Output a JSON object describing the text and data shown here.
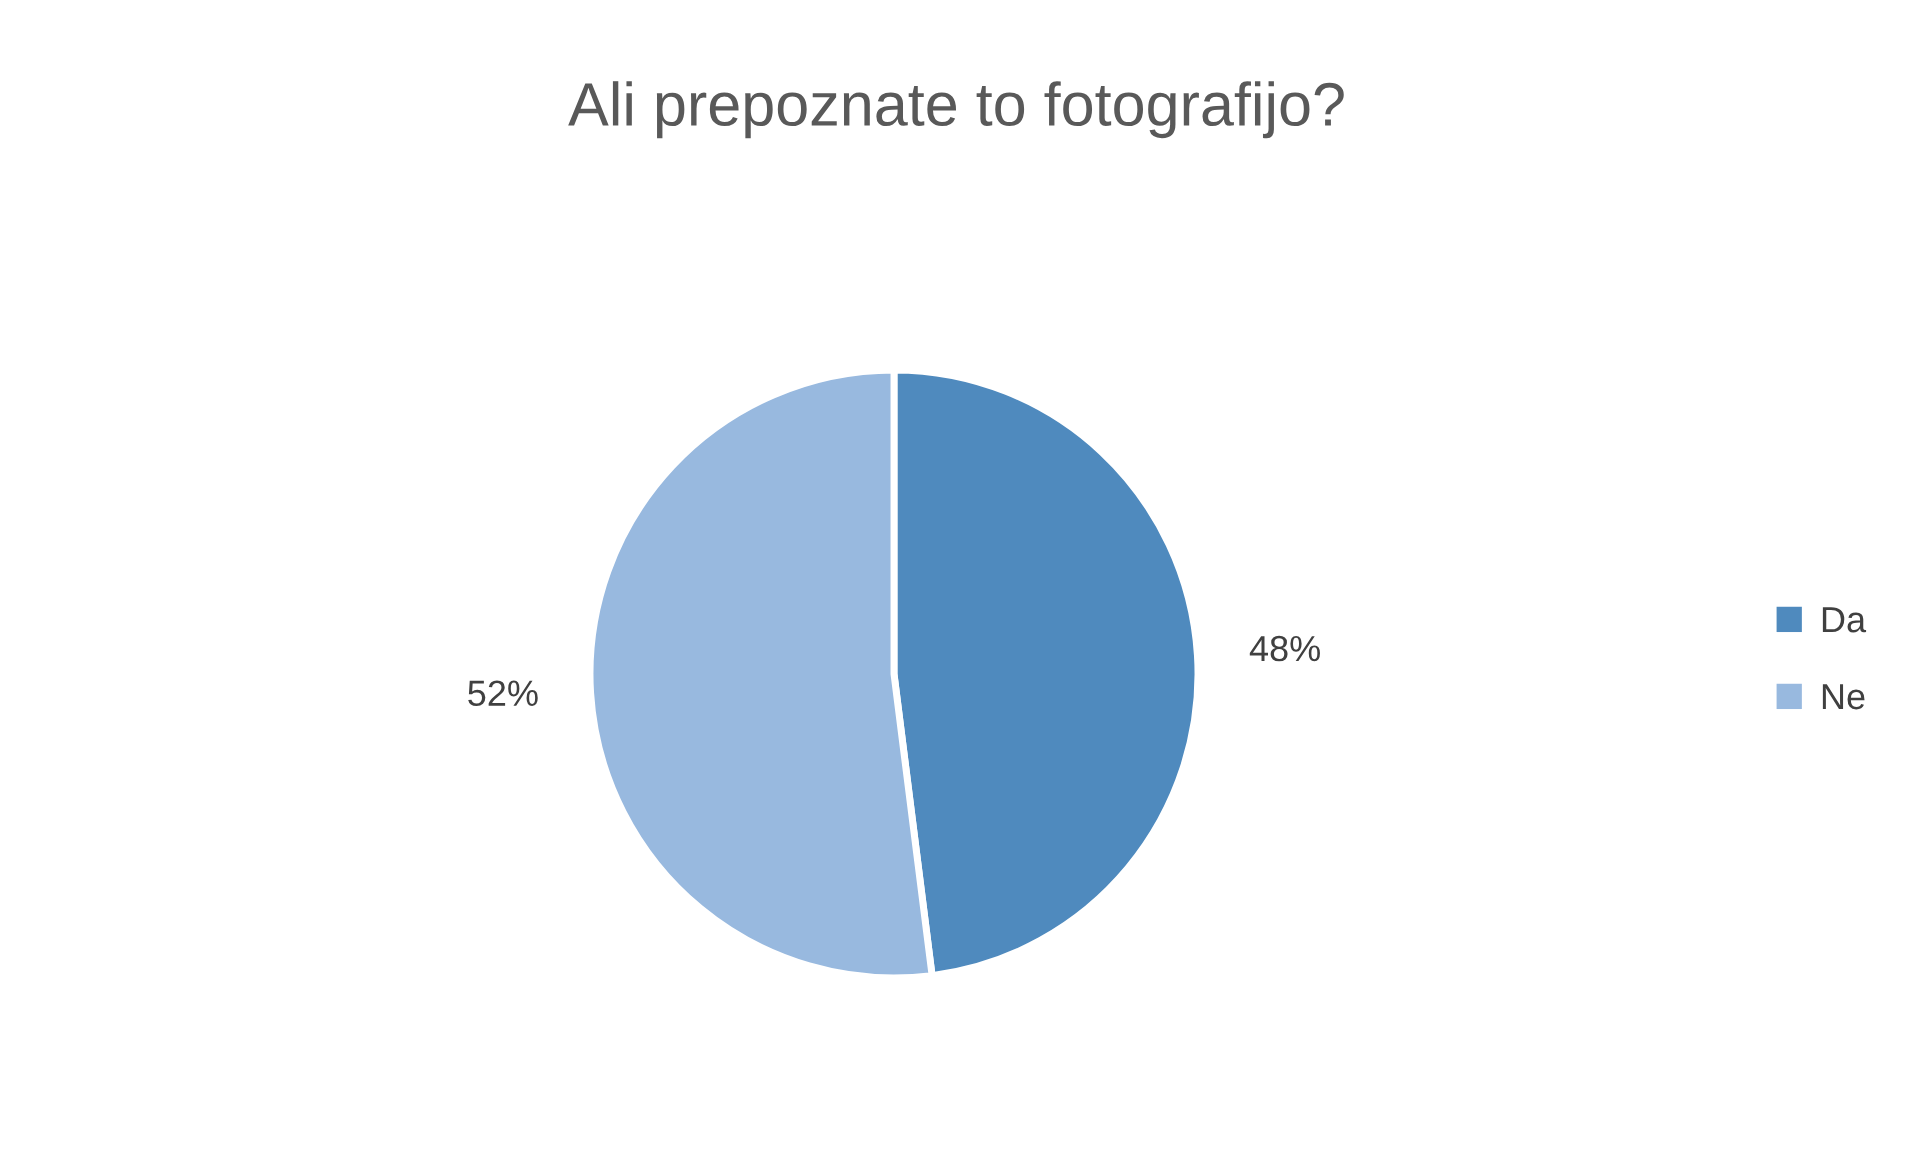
{
  "chart_data": {
    "type": "pie",
    "title": "Ali prepoznate to fotografijo?",
    "categories": [
      "Da",
      "Ne"
    ],
    "values": [
      48,
      52
    ],
    "colors": [
      "#4f8abe",
      "#98b9df"
    ],
    "value_labels": [
      "48%",
      "52%"
    ],
    "legend": "right"
  }
}
